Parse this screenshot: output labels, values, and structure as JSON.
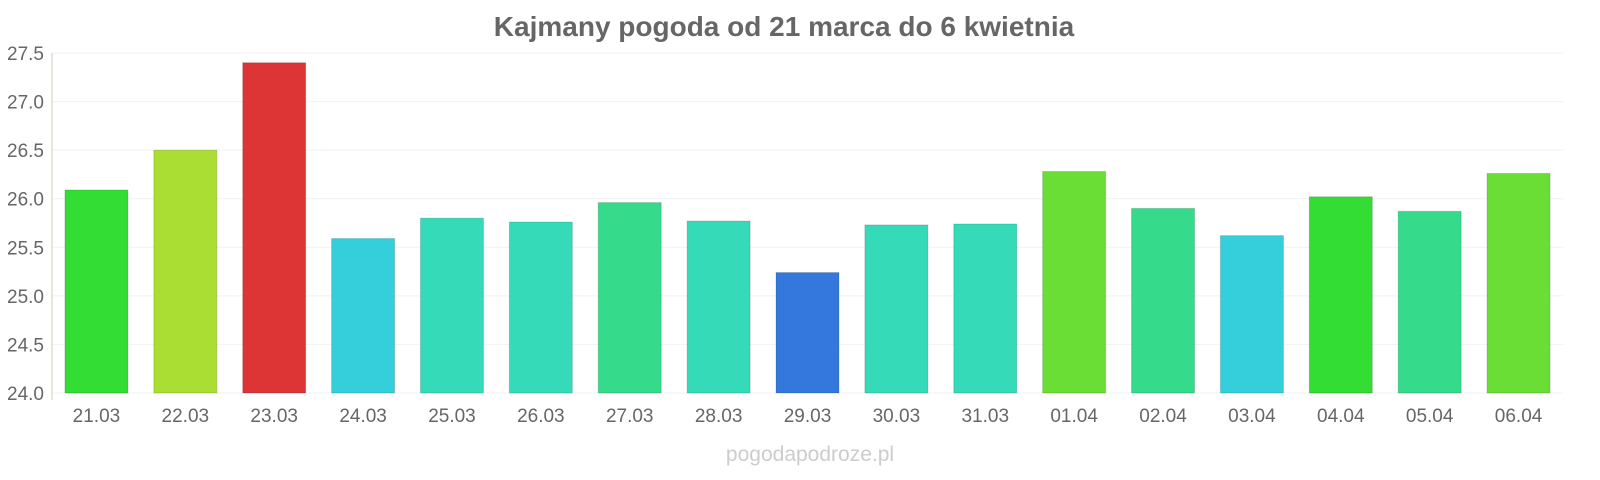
{
  "chart_data": {
    "type": "bar",
    "title": "Kajmany pogoda od 21 marca do 6 kwietnia",
    "xlabel": "",
    "ylabel": "",
    "ylim": [
      24.0,
      27.5
    ],
    "yticks": [
      "24.0",
      "24.5",
      "25.0",
      "25.5",
      "26.0",
      "26.5",
      "27.0",
      "27.5"
    ],
    "grid": true,
    "categories": [
      "21.03",
      "22.03",
      "23.03",
      "24.03",
      "25.03",
      "26.03",
      "27.03",
      "28.03",
      "29.03",
      "30.03",
      "31.03",
      "01.04",
      "02.04",
      "03.04",
      "04.04",
      "05.04",
      "06.04"
    ],
    "values": [
      26.09,
      26.5,
      27.4,
      25.59,
      25.8,
      25.76,
      25.96,
      25.77,
      25.24,
      25.73,
      25.74,
      26.28,
      25.9,
      25.62,
      26.02,
      25.87,
      26.26
    ],
    "colors": [
      "#33dd33",
      "#aade33",
      "#dd3535",
      "#35cedb",
      "#35dbb8",
      "#35dbb8",
      "#35db8b",
      "#35dbb8",
      "#3578dd",
      "#35dbb8",
      "#35dbb8",
      "#6ade35",
      "#35db8b",
      "#35cedb",
      "#33dd33",
      "#35db8b",
      "#6ade35"
    ]
  },
  "watermark": "pogodapodroze.pl"
}
